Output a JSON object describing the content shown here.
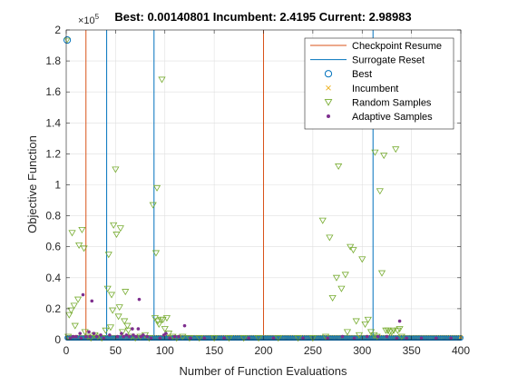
{
  "chart_data": {
    "type": "scatter",
    "title": "Best: 0.00140801 Incumbent: 2.4195 Current: 2.98983",
    "xlabel": "Number of Function Evaluations",
    "ylabel": "Objective Function",
    "y_exponent_label": "×10",
    "y_exponent": "5",
    "xlim": [
      0,
      400
    ],
    "ylim": [
      0,
      2
    ],
    "y_scale_factor": 100000,
    "x_ticks": [
      0,
      50,
      100,
      150,
      200,
      250,
      300,
      350,
      400
    ],
    "x_tick_labels": [
      "0",
      "50",
      "100",
      "150",
      "200",
      "250",
      "300",
      "350",
      "400"
    ],
    "y_ticks": [
      0,
      0.2,
      0.4,
      0.6,
      0.8,
      1,
      1.2,
      1.4,
      1.6,
      1.8,
      2
    ],
    "y_tick_labels": [
      "0",
      "0.2",
      "0.4",
      "0.6",
      "0.8",
      "1",
      "1.2",
      "1.4",
      "1.6",
      "1.8",
      "2"
    ],
    "grid": true,
    "legend_position": "top-right",
    "legend": [
      {
        "label": "Checkpoint Resume",
        "marker": "line",
        "color": "#d95319"
      },
      {
        "label": "Surrogate Reset",
        "marker": "line",
        "color": "#0072bd"
      },
      {
        "label": "Best",
        "marker": "circle",
        "color": "#0072bd"
      },
      {
        "label": "Incumbent",
        "marker": "x",
        "color": "#edb120"
      },
      {
        "label": "Random Samples",
        "marker": "triangle-down",
        "color": "#77ac30"
      },
      {
        "label": "Adaptive Samples",
        "marker": "dot",
        "color": "#7e2f8e"
      }
    ],
    "checkpoint_resume_x": [
      20,
      200
    ],
    "surrogate_reset_x": [
      41,
      89,
      311
    ],
    "best": [
      [
        1,
        1.935
      ]
    ],
    "random_samples": [
      [
        2,
        0.02
      ],
      [
        3,
        0.16
      ],
      [
        5,
        0.19
      ],
      [
        6,
        0.69
      ],
      [
        8,
        0.22
      ],
      [
        9,
        0.09
      ],
      [
        12,
        0.26
      ],
      [
        13,
        0.61
      ],
      [
        16,
        0.71
      ],
      [
        18,
        0.59
      ],
      [
        19,
        0.05
      ],
      [
        22,
        0.02
      ],
      [
        25,
        0.01
      ],
      [
        29,
        0.03
      ],
      [
        32,
        0.02
      ],
      [
        36,
        0.01
      ],
      [
        40,
        0.06
      ],
      [
        42,
        0.33
      ],
      [
        43,
        0.55
      ],
      [
        45,
        0.08
      ],
      [
        46,
        0.29
      ],
      [
        47,
        0.19
      ],
      [
        48,
        0.74
      ],
      [
        50,
        1.1
      ],
      [
        51,
        0.68
      ],
      [
        53,
        0.15
      ],
      [
        54,
        0.21
      ],
      [
        55,
        0.72
      ],
      [
        57,
        0.05
      ],
      [
        59,
        0.12
      ],
      [
        60,
        0.31
      ],
      [
        62,
        0.09
      ],
      [
        63,
        0.06
      ],
      [
        66,
        0.02
      ],
      [
        70,
        0.01
      ],
      [
        75,
        0.02
      ],
      [
        80,
        0.03
      ],
      [
        84,
        0.01
      ],
      [
        88,
        0.87
      ],
      [
        90,
        0.14
      ],
      [
        91,
        0.56
      ],
      [
        92,
        0.98
      ],
      [
        93,
        0.12
      ],
      [
        94,
        0.1
      ],
      [
        96,
        0.13
      ],
      [
        97,
        1.68
      ],
      [
        98,
        0.13
      ],
      [
        100,
        0.07
      ],
      [
        102,
        0.14
      ],
      [
        104,
        0.04
      ],
      [
        108,
        0.02
      ],
      [
        112,
        0.01
      ],
      [
        118,
        0.02
      ],
      [
        125,
        0.01
      ],
      [
        135,
        0.01
      ],
      [
        150,
        0.01
      ],
      [
        165,
        0.01
      ],
      [
        180,
        0.01
      ],
      [
        195,
        0.01
      ],
      [
        215,
        0.01
      ],
      [
        235,
        0.01
      ],
      [
        250,
        0.01
      ],
      [
        260,
        0.77
      ],
      [
        263,
        0.02
      ],
      [
        267,
        0.66
      ],
      [
        270,
        0.27
      ],
      [
        274,
        0.4
      ],
      [
        276,
        1.12
      ],
      [
        279,
        0.33
      ],
      [
        283,
        0.42
      ],
      [
        285,
        0.05
      ],
      [
        288,
        0.6
      ],
      [
        291,
        0.58
      ],
      [
        294,
        0.12
      ],
      [
        297,
        0.03
      ],
      [
        300,
        0.52
      ],
      [
        303,
        0.1
      ],
      [
        306,
        0.13
      ],
      [
        309,
        0.05
      ],
      [
        312,
        0.03
      ],
      [
        313,
        1.21
      ],
      [
        315,
        0.02
      ],
      [
        318,
        0.96
      ],
      [
        320,
        0.43
      ],
      [
        322,
        1.19
      ],
      [
        324,
        0.06
      ],
      [
        326,
        0.06
      ],
      [
        328,
        0.05
      ],
      [
        330,
        0.05
      ],
      [
        332,
        0.06
      ],
      [
        334,
        1.23
      ],
      [
        336,
        0.06
      ],
      [
        338,
        0.07
      ],
      [
        340,
        0.02
      ]
    ],
    "adaptive_samples": [
      [
        4,
        0.01
      ],
      [
        7,
        0.02
      ],
      [
        10,
        0.02
      ],
      [
        14,
        0.04
      ],
      [
        15,
        0.01
      ],
      [
        17,
        0.29
      ],
      [
        20,
        0.02
      ],
      [
        23,
        0.05
      ],
      [
        24,
        0.02
      ],
      [
        26,
        0.25
      ],
      [
        28,
        0.04
      ],
      [
        31,
        0.02
      ],
      [
        35,
        0.03
      ],
      [
        38,
        0.01
      ],
      [
        44,
        0.03
      ],
      [
        52,
        0.02
      ],
      [
        56,
        0.04
      ],
      [
        58,
        0.02
      ],
      [
        61,
        0.03
      ],
      [
        64,
        0.02
      ],
      [
        67,
        0.07
      ],
      [
        68,
        0.03
      ],
      [
        71,
        0.02
      ],
      [
        73,
        0.07
      ],
      [
        74,
        0.26
      ],
      [
        76,
        0.02
      ],
      [
        78,
        0.03
      ],
      [
        82,
        0.02
      ],
      [
        86,
        0.01
      ],
      [
        95,
        0.01
      ],
      [
        99,
        0.03
      ],
      [
        101,
        0.04
      ],
      [
        105,
        0.01
      ],
      [
        110,
        0.02
      ],
      [
        114,
        0.02
      ],
      [
        120,
        0.09
      ],
      [
        126,
        0.01
      ],
      [
        140,
        0.01
      ],
      [
        160,
        0.01
      ],
      [
        185,
        0.01
      ],
      [
        210,
        0.01
      ],
      [
        240,
        0.01
      ],
      [
        265,
        0.01
      ],
      [
        280,
        0.02
      ],
      [
        292,
        0.01
      ],
      [
        305,
        0.02
      ],
      [
        316,
        0.02
      ],
      [
        325,
        0.02
      ],
      [
        335,
        0.01
      ],
      [
        338,
        0.12
      ],
      [
        345,
        0.01
      ],
      [
        360,
        0.01
      ],
      [
        375,
        0.01
      ],
      [
        390,
        0.01
      ]
    ]
  }
}
